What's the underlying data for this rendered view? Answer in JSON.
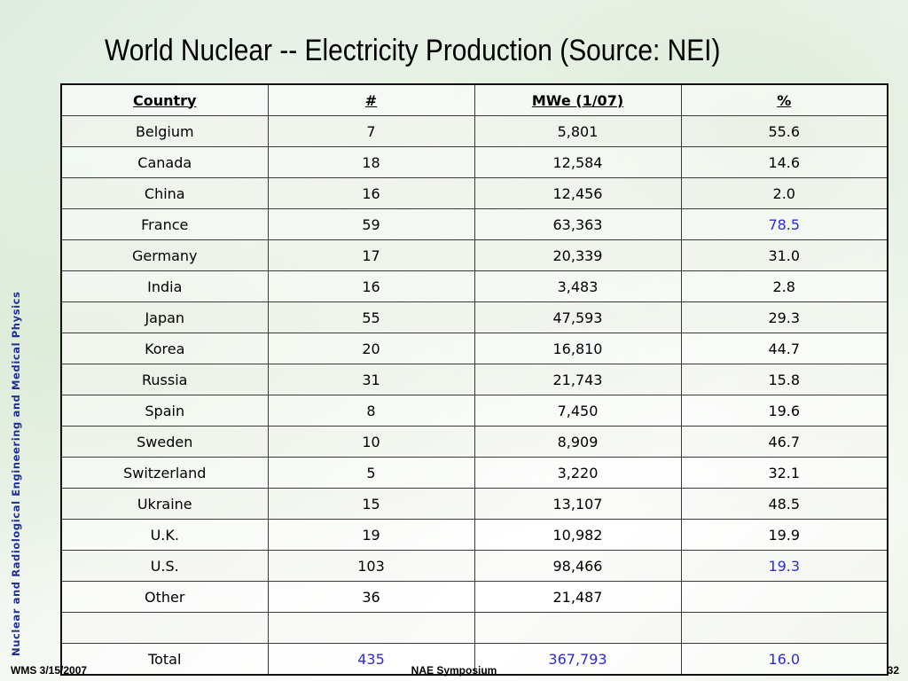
{
  "slide": {
    "title": "World Nuclear -- Electricity Production (Source: NEI)",
    "side_caption": "Nuclear and Radiological Engineering and Medical Physics"
  },
  "table": {
    "headers": [
      "Country",
      "#",
      "MWe (1/07)",
      "%"
    ],
    "rows": [
      {
        "country": "Belgium",
        "count": "7",
        "mwe": "5,801",
        "pct": "55.6"
      },
      {
        "country": "Canada",
        "count": "18",
        "mwe": "12,584",
        "pct": "14.6"
      },
      {
        "country": "China",
        "count": "16",
        "mwe": "12,456",
        "pct": "2.0"
      },
      {
        "country": "France",
        "count": "59",
        "mwe": "63,363",
        "pct": "78.5"
      },
      {
        "country": "Germany",
        "count": "17",
        "mwe": "20,339",
        "pct": "31.0"
      },
      {
        "country": "India",
        "count": "16",
        "mwe": "3,483",
        "pct": "2.8"
      },
      {
        "country": "Japan",
        "count": "55",
        "mwe": "47,593",
        "pct": "29.3"
      },
      {
        "country": "Korea",
        "count": "20",
        "mwe": "16,810",
        "pct": "44.7"
      },
      {
        "country": "Russia",
        "count": "31",
        "mwe": "21,743",
        "pct": "15.8"
      },
      {
        "country": "Spain",
        "count": "8",
        "mwe": "7,450",
        "pct": "19.6"
      },
      {
        "country": "Sweden",
        "count": "10",
        "mwe": "8,909",
        "pct": "46.7"
      },
      {
        "country": "Switzerland",
        "count": "5",
        "mwe": "3,220",
        "pct": "32.1"
      },
      {
        "country": "Ukraine",
        "count": "15",
        "mwe": "13,107",
        "pct": "48.5"
      },
      {
        "country": "U.K.",
        "count": "19",
        "mwe": "10,982",
        "pct": "19.9"
      },
      {
        "country": "U.S.",
        "count": "103",
        "mwe": "98,466",
        "pct": "19.3"
      },
      {
        "country": "Other",
        "count": "36",
        "mwe": "21,487",
        "pct": ""
      },
      {
        "country": "",
        "count": "",
        "mwe": "",
        "pct": ""
      },
      {
        "country": "Total",
        "count": "435",
        "mwe": "367,793",
        "pct": "16.0"
      }
    ]
  },
  "footer": {
    "left": "WMS 3/15/2007",
    "center": "NAE Symposium",
    "right": "32"
  },
  "colors": {
    "highlight_blue": "#2b2bd6",
    "caption_blue": "#1f2f9a"
  }
}
